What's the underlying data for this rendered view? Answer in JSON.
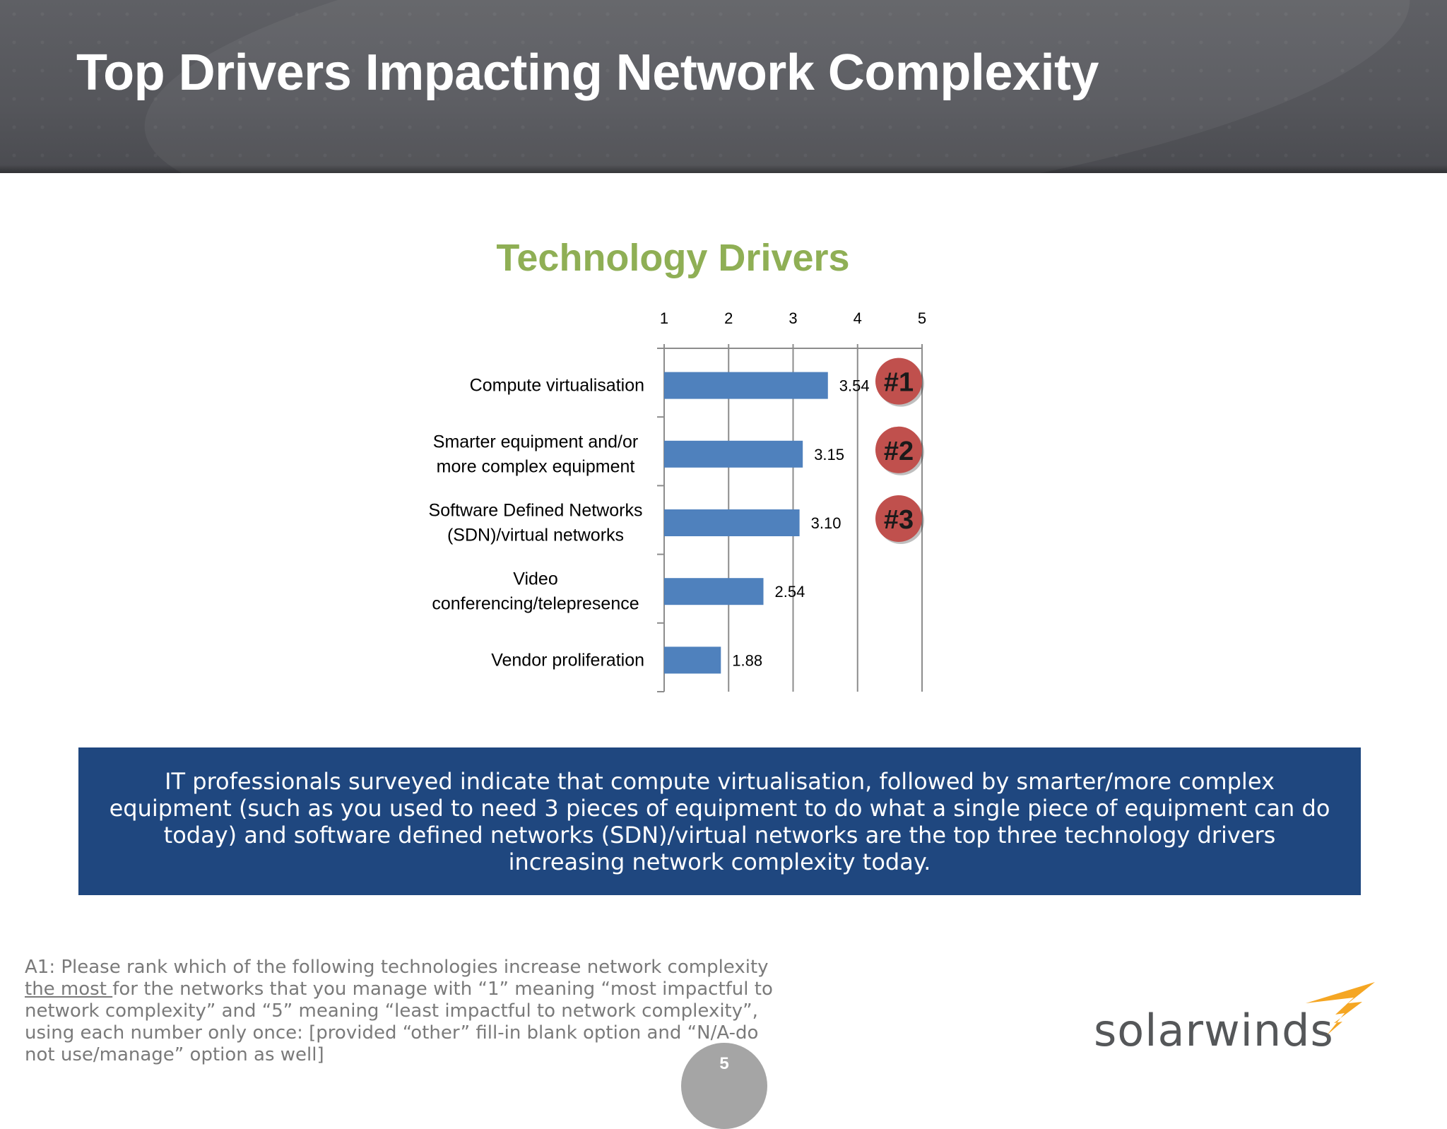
{
  "slide": {
    "title": "Top Drivers Impacting Network Complexity",
    "page_number": "5"
  },
  "chart_data": {
    "type": "bar",
    "orientation": "horizontal",
    "title": "Technology Drivers",
    "categories": [
      [
        "Compute virtualisation"
      ],
      [
        "Smarter equipment and/or",
        "more complex equipment"
      ],
      [
        "Software Defined Networks",
        "(SDN)/virtual networks"
      ],
      [
        "Video",
        "conferencing/telepresence"
      ],
      [
        "Vendor proliferation"
      ]
    ],
    "values": [
      3.54,
      3.15,
      3.1,
      2.54,
      1.88
    ],
    "data_labels": [
      "3.54",
      "3.15",
      "3.10",
      "2.54",
      "1.88"
    ],
    "x_ticks": [
      "1",
      "2",
      "3",
      "4",
      "5"
    ],
    "xlim": [
      1,
      5
    ],
    "axis_position": "top",
    "grid": true,
    "bar_color": "#4f81bd",
    "rank_badges": [
      "#1",
      "#2",
      "#3"
    ],
    "badge_color": "#c0504d"
  },
  "callout": {
    "text": "IT professionals surveyed indicate that compute virtualisation, followed by smarter/more complex equipment (such as you used to need 3 pieces of equipment to do what a single piece of equipment can do today) and software defined networks (SDN)/virtual networks are the top three technology drivers increasing network complexity today."
  },
  "footnote": {
    "before": "A1: Please rank which of the following technologies increase network complexity ",
    "underlined": "the most ",
    "after": "for the networks that you manage with “1” meaning “most impactful to network complexity” and “5” meaning “least impactful to network complexity”, using each number only once: [provided “other” fill-in blank option and “N/A-do not use/manage” option as well]"
  },
  "logo": {
    "text": "solarwinds",
    "icon": "flame-icon",
    "icon_color": "#f5a623"
  }
}
